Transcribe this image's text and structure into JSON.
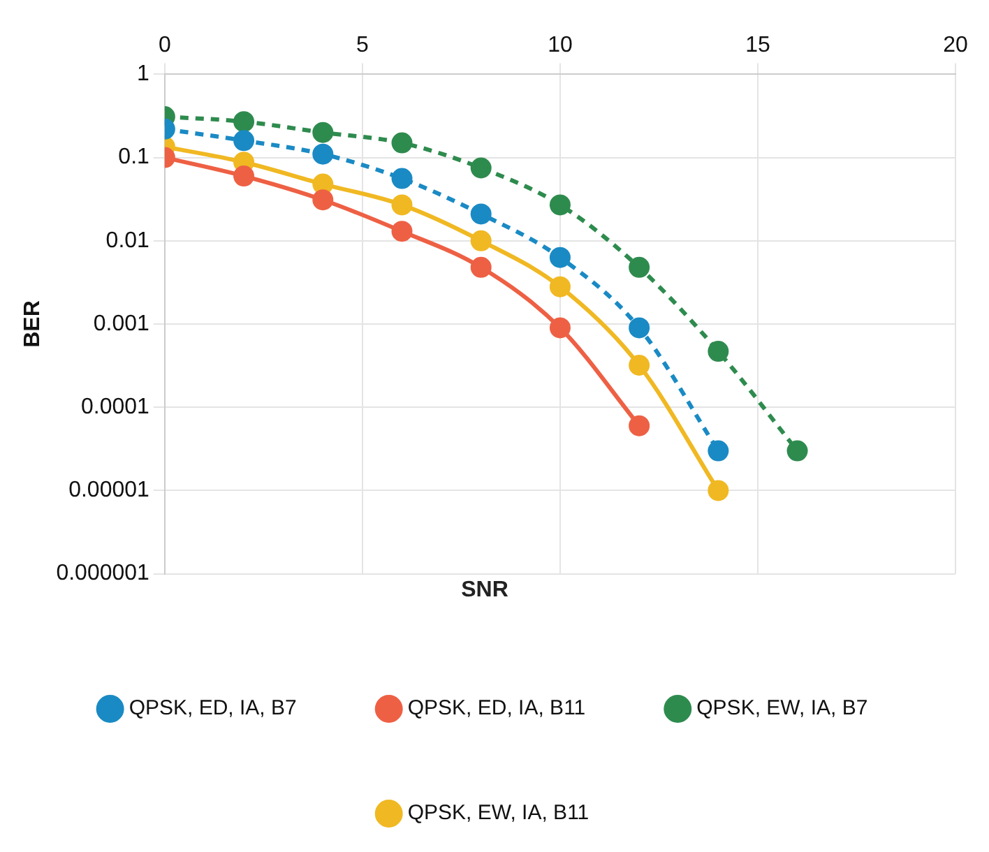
{
  "chart_data": {
    "type": "line",
    "xlabel": "SNR",
    "ylabel": "BER",
    "log": "y",
    "grid": true,
    "legend": "bottom",
    "marker": "circle",
    "xlim": [
      0,
      20
    ],
    "xticks": [
      0,
      5,
      10,
      15,
      20
    ],
    "ylim": [
      1e-06,
      1
    ],
    "yticks": [
      1,
      0.1,
      0.01,
      0.001,
      0.0001,
      {
        "value": 1e-05,
        "label": "0.00001"
      },
      {
        "value": 1e-06,
        "label": "0.000001"
      }
    ],
    "series": [
      {
        "name": "QPSK, ED, IA, B7",
        "color": "#1a8ac4",
        "line_style": "dashed",
        "x": [
          0,
          2,
          4,
          6,
          8,
          10,
          12,
          14
        ],
        "values": [
          0.22,
          0.16,
          0.11,
          0.056,
          0.021,
          0.0063,
          0.0009,
          3e-05
        ]
      },
      {
        "name": "QPSK, ED, IA, B11",
        "color": "#ee6044",
        "line_style": "solid",
        "x": [
          0,
          2,
          4,
          6,
          8,
          10,
          12
        ],
        "values": [
          0.1,
          0.06,
          0.031,
          0.013,
          0.0048,
          0.0009,
          6e-05
        ]
      },
      {
        "name": "QPSK, EW, IA, B7",
        "color": "#2e8b4e",
        "line_style": "dashed",
        "x": [
          0,
          2,
          4,
          6,
          8,
          10,
          12,
          14,
          16
        ],
        "values": [
          0.31,
          0.27,
          0.2,
          0.15,
          0.075,
          0.027,
          0.0048,
          0.00047,
          3e-05
        ]
      },
      {
        "name": "QPSK, EW, IA, B11",
        "color": "#f0b822",
        "line_style": "solid",
        "x": [
          0,
          2,
          4,
          6,
          8,
          10,
          12,
          14
        ],
        "values": [
          0.135,
          0.088,
          0.048,
          0.027,
          0.01,
          0.0028,
          0.00032,
          1e-05
        ]
      }
    ]
  }
}
